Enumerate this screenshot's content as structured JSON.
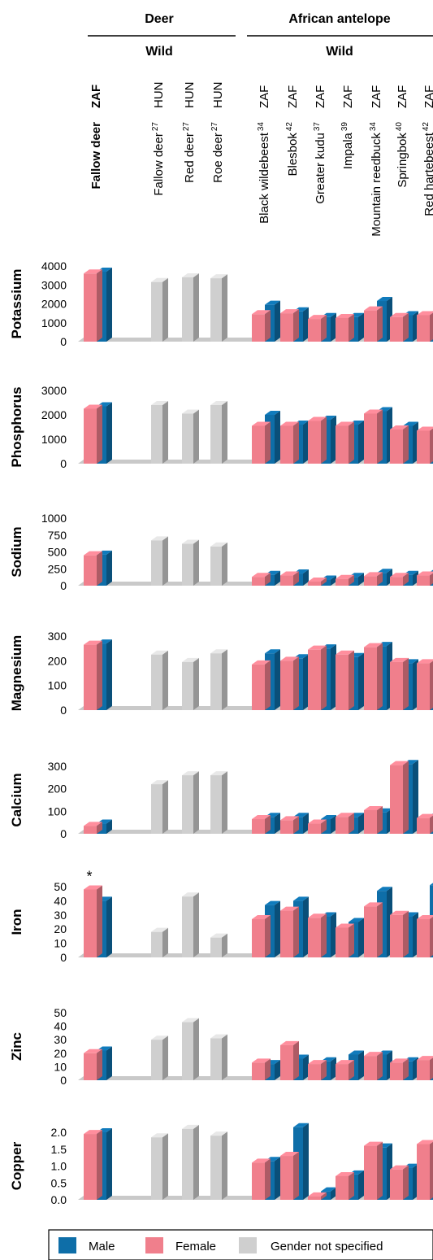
{
  "colors": {
    "male": "#0e6ea8",
    "female": "#f07f8c",
    "unspecified": "#cfcfcf",
    "floor": "#c9c9c9"
  },
  "header": {
    "group_deer": "Deer",
    "group_antelope": "African antelope",
    "wild_deer": "Wild",
    "wild_antelope": "Wild"
  },
  "legend": {
    "male": "Male",
    "female": "Female",
    "unspecified": "Gender not specified"
  },
  "chart_data": {
    "type": "bar",
    "bar_style": "3d-grouped",
    "categories": [
      {
        "name": "Fallow deer",
        "sup": "",
        "country": "ZAF",
        "bold": true
      },
      {
        "name": "Fallow deer",
        "sup": "27",
        "country": "HUN",
        "bold": false
      },
      {
        "name": "Red deer",
        "sup": "27",
        "country": "HUN",
        "bold": false
      },
      {
        "name": "Roe deer",
        "sup": "27",
        "country": "HUN",
        "bold": false
      },
      {
        "name": "Black wildebeest",
        "sup": "34",
        "country": "ZAF",
        "bold": false
      },
      {
        "name": "Blesbok",
        "sup": "42",
        "country": "ZAF",
        "bold": false
      },
      {
        "name": "Greater kudu",
        "sup": "37",
        "country": "ZAF",
        "bold": false
      },
      {
        "name": "Impala",
        "sup": "39",
        "country": "ZAF",
        "bold": false
      },
      {
        "name": "Mountain reedbuck",
        "sup": "34",
        "country": "ZAF",
        "bold": false
      },
      {
        "name": "Springbok",
        "sup": "40",
        "country": "ZAF",
        "bold": false
      },
      {
        "name": "Red hartebeest",
        "sup": "42",
        "country": "ZAF",
        "bold": false
      }
    ],
    "panels": [
      {
        "label": "Potassium",
        "ylim": [
          0,
          4000
        ],
        "ticks": [
          "0",
          "1000",
          "2000",
          "3000",
          "4000"
        ],
        "female": [
          3600,
          null,
          null,
          null,
          1450,
          1500,
          1200,
          1250,
          1650,
          1300,
          1400
        ],
        "male": [
          3700,
          null,
          null,
          null,
          1950,
          1600,
          1300,
          1300,
          2150,
          1400,
          1500
        ],
        "unspecified": [
          null,
          3150,
          3400,
          3350,
          null,
          null,
          null,
          null,
          null,
          null,
          null
        ]
      },
      {
        "label": "Phosphorus",
        "ylim": [
          0,
          3000
        ],
        "ticks": [
          "0",
          "1000",
          "2000",
          "3000"
        ],
        "female": [
          2250,
          null,
          null,
          null,
          1550,
          1550,
          1750,
          1550,
          2050,
          1400,
          1350
        ],
        "male": [
          2350,
          null,
          null,
          null,
          2000,
          1600,
          1800,
          1600,
          2150,
          1550,
          1300
        ],
        "unspecified": [
          null,
          2400,
          2050,
          2400,
          null,
          null,
          null,
          null,
          null,
          null,
          null
        ]
      },
      {
        "label": "Sodium",
        "ylim": [
          0,
          1000
        ],
        "ticks": [
          "0",
          "250",
          "500",
          "750",
          "1000"
        ],
        "female": [
          450,
          null,
          null,
          null,
          130,
          150,
          60,
          100,
          140,
          130,
          150
        ],
        "male": [
          460,
          null,
          null,
          null,
          160,
          180,
          90,
          130,
          190,
          160,
          200
        ],
        "unspecified": [
          null,
          670,
          620,
          580,
          null,
          null,
          null,
          null,
          null,
          null,
          null
        ]
      },
      {
        "label": "Magnesium",
        "ylim": [
          0,
          300
        ],
        "ticks": [
          "0",
          "100",
          "200",
          "300"
        ],
        "female": [
          265,
          null,
          null,
          null,
          185,
          200,
          245,
          225,
          255,
          195,
          190
        ],
        "male": [
          270,
          null,
          null,
          null,
          230,
          210,
          250,
          215,
          260,
          190,
          170
        ],
        "unspecified": [
          null,
          225,
          195,
          230,
          null,
          null,
          null,
          null,
          null,
          null,
          null
        ]
      },
      {
        "label": "Calcium",
        "ylim": [
          0,
          300
        ],
        "ticks": [
          "0",
          "100",
          "200",
          "300"
        ],
        "female": [
          35,
          null,
          null,
          null,
          65,
          60,
          45,
          75,
          105,
          305,
          70
        ],
        "male": [
          45,
          null,
          null,
          null,
          75,
          75,
          65,
          75,
          95,
          310,
          80
        ],
        "unspecified": [
          null,
          220,
          260,
          260,
          null,
          null,
          null,
          null,
          null,
          null,
          null
        ]
      },
      {
        "label": "Iron",
        "ylim": [
          0,
          50
        ],
        "ticks": [
          "0",
          "10",
          "20",
          "30",
          "40",
          "50"
        ],
        "annotation": "*",
        "female": [
          48,
          null,
          null,
          null,
          27,
          33,
          28,
          21,
          36,
          30,
          27
        ],
        "male": [
          40,
          null,
          null,
          null,
          37,
          40,
          29,
          25,
          47,
          29,
          51
        ],
        "unspecified": [
          null,
          18,
          43,
          14,
          null,
          null,
          null,
          null,
          null,
          null,
          null
        ]
      },
      {
        "label": "Zinc",
        "ylim": [
          0,
          50
        ],
        "ticks": [
          "0",
          "10",
          "20",
          "30",
          "40",
          "50"
        ],
        "female": [
          20,
          null,
          null,
          null,
          13,
          26,
          12,
          12,
          18,
          13,
          15
        ],
        "male": [
          22,
          null,
          null,
          null,
          12,
          16,
          14,
          19,
          19,
          14,
          15
        ],
        "unspecified": [
          null,
          30,
          43,
          31,
          null,
          null,
          null,
          null,
          null,
          null,
          null
        ]
      },
      {
        "label": "Copper",
        "ylim": [
          0,
          2
        ],
        "ticks": [
          "0.0",
          "0.5",
          "1.0",
          "1.5",
          "2.0"
        ],
        "female": [
          1.95,
          null,
          null,
          null,
          1.1,
          1.3,
          0.1,
          0.7,
          1.6,
          0.9,
          1.65
        ],
        "male": [
          2.0,
          null,
          null,
          null,
          1.15,
          2.15,
          0.25,
          0.75,
          1.55,
          0.95,
          1.4
        ],
        "unspecified": [
          null,
          1.85,
          2.1,
          1.9,
          null,
          null,
          null,
          null,
          null,
          null,
          null
        ]
      }
    ]
  }
}
